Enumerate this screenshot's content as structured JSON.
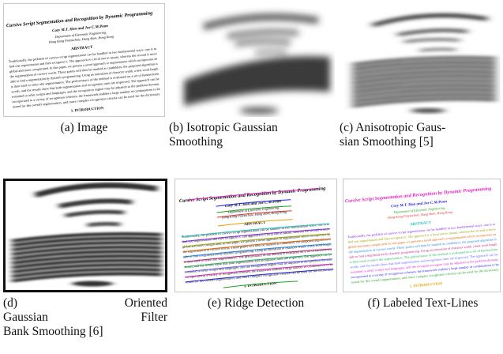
{
  "document": {
    "title": "Cursive Script Segmentation and Recognition by Dynamic Programming",
    "authors": "Cory M.T. Hon and Joe C.M.Poon",
    "affiliation_1": "Department of Electronic Engineering,",
    "affiliation_2": "Hong Kong Polytechnic, Hung Hom, Hong Kong",
    "abstract_heading": "ABSTRACT",
    "abstract_lines": [
      "Traditionally, the problem of cursive script segmentation can be handled in two fundamental ways: one is to",
      "find one segmentation and then recognize it. The approach is a local one in nature, whereas the second is more",
      "global and more complicated. In this paper, we present a novel approach to segmentation which incorporates an",
      "the segmentation of cursive words. These points will then be marked as candidates, the proposed algorithm is",
      "able to find a segmentation by dynamic programming. Using an estimation of character width, a best word length",
      "is then used to select the segmentation. The performance of the method is evaluated on a set of handwritten",
      "words, and the results show that both segmentation and recognition rates are improved. The approach can be",
      "extended to other scripts and languages, and the recognition engine may be adjusted to the problem domain.",
      "incorporated in a variety of recognition schemes; the framework enables a large number of combinations to be",
      "tested for the overall segmentation, and more complex recognition criteria can be used for the dictionary."
    ],
    "intro_heading": "1. INTRODUCTION"
  },
  "captions": {
    "a": "(a) Image",
    "b_line1": "(b) Isotropic Gaussian",
    "b_line2": "Smoothing",
    "c_line1": "(c) Anisotropic Gaus-",
    "c_line2": "sian Smoothing [5]",
    "d_word1": "(d)",
    "d_word2": "Oriented",
    "d_word3": "Gaussian",
    "d_word4": "Filter",
    "d_line3": "Bank Smoothing [6]",
    "e": "(e) Ridge Detection",
    "f": "(f) Labeled Text-Lines"
  },
  "colors": {
    "line_colors": [
      "#e020c0",
      "#2020e0",
      "#20a020",
      "#e03030",
      "#e0a000",
      "#20c0c0",
      "#8020e0",
      "#a0a000",
      "#e06000",
      "#2080e0",
      "#c02080",
      "#20b060",
      "#6060ff"
    ]
  }
}
